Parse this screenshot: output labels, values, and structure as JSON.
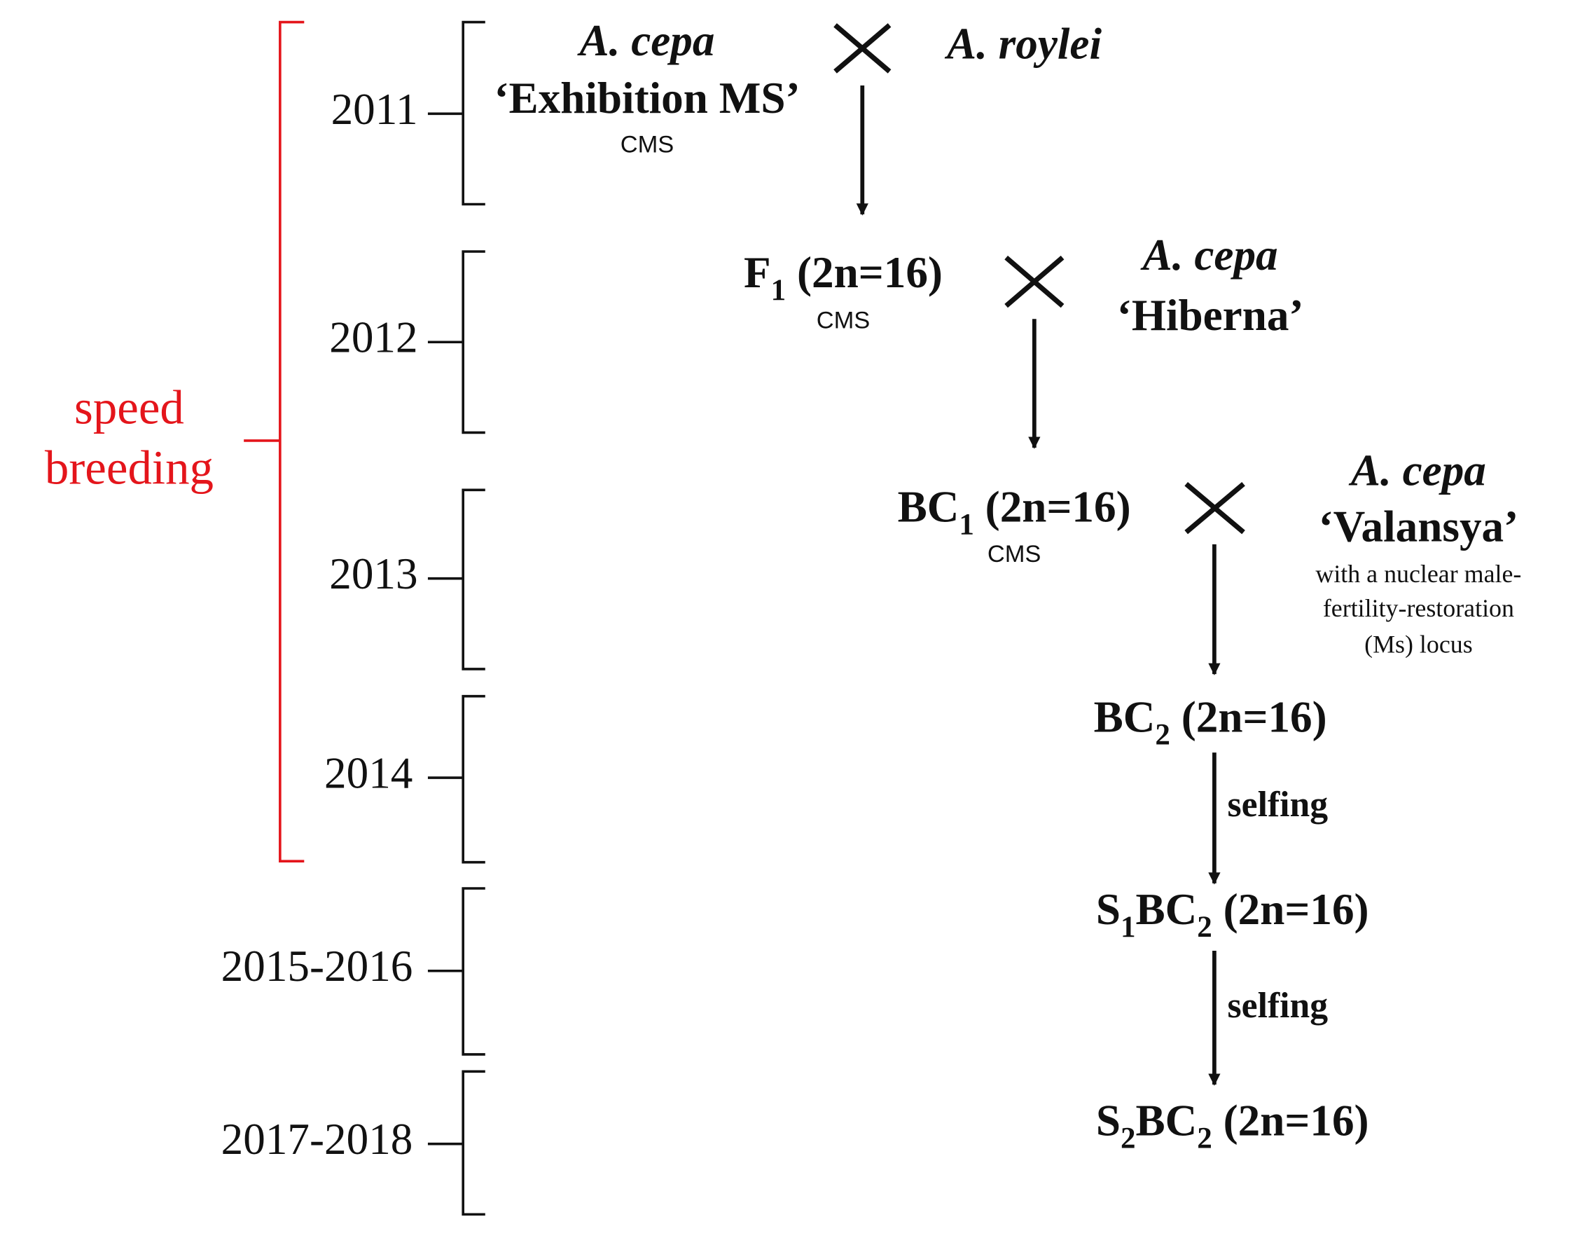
{
  "speed_breeding": [
    "speed",
    "breeding"
  ],
  "years": [
    "2011",
    "2012",
    "2013",
    "2014",
    "2015-2016",
    "2017-2018"
  ],
  "crosses": [
    {
      "female": {
        "lines": [
          "A. cepa",
          "‘Exhibition MS’"
        ],
        "note": "CMS"
      },
      "male": {
        "lines": [
          "A. roylei"
        ]
      }
    },
    {
      "female": {
        "label": [
          {
            "text": "F"
          },
          {
            "sub": "1"
          },
          {
            "text": " (2n=16)"
          }
        ],
        "note": "CMS"
      },
      "male": {
        "lines": [
          "A. cepa",
          "‘Hiberna’"
        ]
      }
    },
    {
      "female": {
        "label": [
          {
            "text": "BC"
          },
          {
            "sub": "1"
          },
          {
            "text": " (2n=16)"
          }
        ],
        "note": "CMS"
      },
      "male": {
        "lines": [
          "A. cepa",
          "‘Valansya’"
        ],
        "note_lines": [
          "with a nuclear male-",
          "fertility-restoration",
          "(Ms) locus"
        ]
      }
    }
  ],
  "progeny": [
    {
      "label": [
        {
          "text": "BC"
        },
        {
          "sub": "2"
        },
        {
          "text": " (2n=16)"
        }
      ]
    },
    {
      "step": "selfing",
      "label": [
        {
          "text": "S"
        },
        {
          "sub": "1"
        },
        {
          "text": "BC"
        },
        {
          "sub": "2"
        },
        {
          "text": " (2n=16)"
        }
      ]
    },
    {
      "step": "selfing",
      "label": [
        {
          "text": "S"
        },
        {
          "sub": "2"
        },
        {
          "text": "BC"
        },
        {
          "sub": "2"
        },
        {
          "text": " (2n=16)"
        }
      ]
    }
  ]
}
